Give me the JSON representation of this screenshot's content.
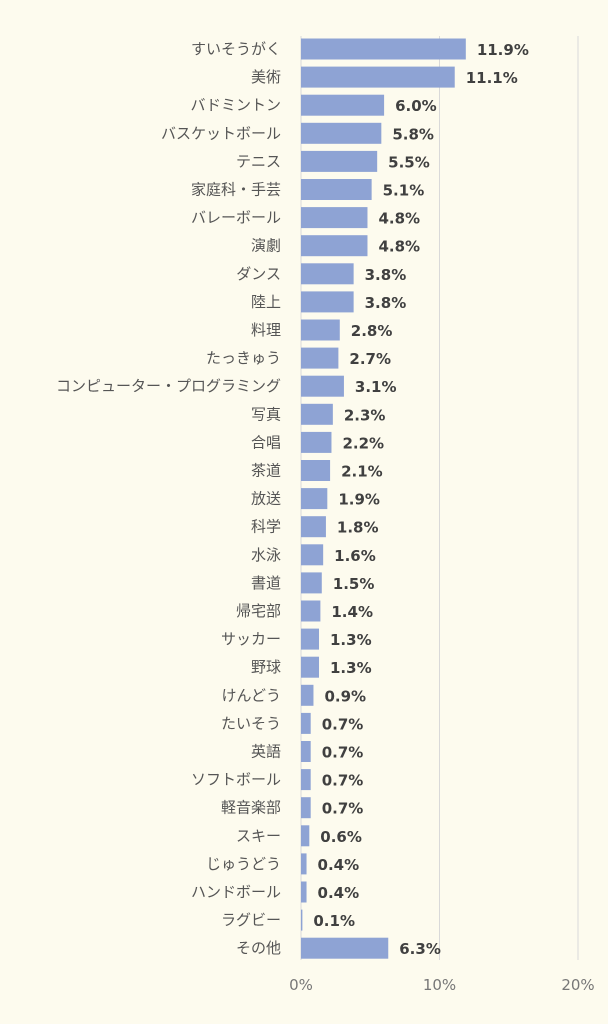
{
  "chart_data": {
    "type": "bar",
    "orientation": "horizontal",
    "title": "",
    "xlabel": "",
    "ylabel": "",
    "xlim": [
      0,
      20
    ],
    "x_ticks": [
      "0%",
      "10%",
      "20%"
    ],
    "x_tick_values": [
      0,
      10,
      20
    ],
    "grid": "vertical",
    "bar_color": "#8ea3d4",
    "background_color": "#fdfbee",
    "categories": [
      "すいそうがく",
      "美術",
      "バドミントン",
      "バスケットボール",
      "テニス",
      "家庭科・手芸",
      "バレーボール",
      "演劇",
      "ダンス",
      "陸上",
      "料理",
      "たっきゅう",
      "コンピューター・プログラミング",
      "写真",
      "合唱",
      "茶道",
      "放送",
      "科学",
      "水泳",
      "書道",
      "帰宅部",
      "サッカー",
      "野球",
      "けんどう",
      "たいそう",
      "英語",
      "ソフトボール",
      "軽音楽部",
      "スキー",
      "じゅうどう",
      "ハンドボール",
      "ラグビー",
      "その他"
    ],
    "values": [
      11.9,
      11.1,
      6.0,
      5.8,
      5.5,
      5.1,
      4.8,
      4.8,
      3.8,
      3.8,
      2.8,
      2.7,
      3.1,
      2.3,
      2.2,
      2.1,
      1.9,
      1.8,
      1.6,
      1.5,
      1.4,
      1.3,
      1.3,
      0.9,
      0.7,
      0.7,
      0.7,
      0.7,
      0.6,
      0.4,
      0.4,
      0.1,
      6.3
    ],
    "value_labels": [
      "11.9%",
      "11.1%",
      "6.0%",
      "5.8%",
      "5.5%",
      "5.1%",
      "4.8%",
      "4.8%",
      "3.8%",
      "3.8%",
      "2.8%",
      "2.7%",
      "3.1%",
      "2.3%",
      "2.2%",
      "2.1%",
      "1.9%",
      "1.8%",
      "1.6%",
      "1.5%",
      "1.4%",
      "1.3%",
      "1.3%",
      "0.9%",
      "0.7%",
      "0.7%",
      "0.7%",
      "0.7%",
      "0.6%",
      "0.4%",
      "0.4%",
      "0.1%",
      "6.3%"
    ]
  }
}
